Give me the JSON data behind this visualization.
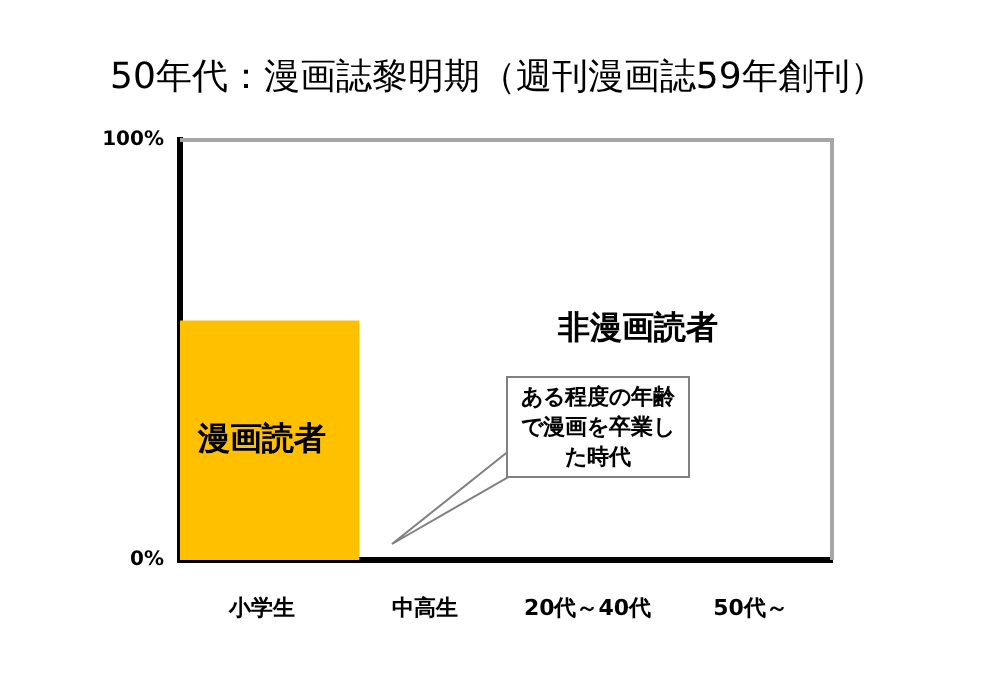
{
  "chart_data": {
    "type": "bar",
    "title": "50年代：漫画誌黎明期（週刊漫画誌59年創刊）",
    "categories": [
      "小学生",
      "中高生",
      "20代～40代",
      "50代～"
    ],
    "series": [
      {
        "name": "漫画読者",
        "color": "#ffc000",
        "values": [
          57,
          null,
          null,
          null
        ]
      }
    ],
    "ylim": [
      0,
      100
    ],
    "yticks": [
      {
        "value": 0,
        "label": "0%"
      },
      {
        "value": 100,
        "label": "100%"
      }
    ],
    "grid": false,
    "legend": false,
    "annotations": [
      "非漫画読者",
      "ある程度の年齢で漫画を卒業した時代"
    ]
  }
}
